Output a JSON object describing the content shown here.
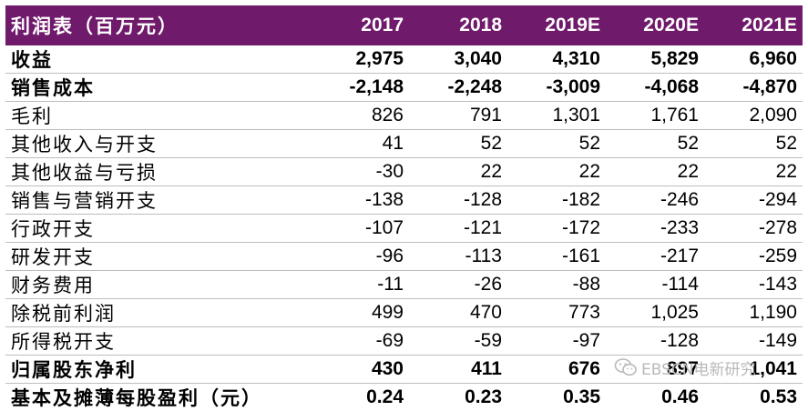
{
  "table": {
    "title": "利润表（百万元）",
    "years": [
      "2017",
      "2018",
      "2019E",
      "2020E",
      "2021E"
    ],
    "rows": [
      {
        "label": "收益",
        "bold": true,
        "values": [
          "2,975",
          "3,040",
          "4,310",
          "5,829",
          "6,960"
        ]
      },
      {
        "label": "销售成本",
        "bold": true,
        "values": [
          "-2,148",
          "-2,248",
          "-3,009",
          "-4,068",
          "-4,870"
        ]
      },
      {
        "label": "毛利",
        "bold": false,
        "values": [
          "826",
          "791",
          "1,301",
          "1,761",
          "2,090"
        ]
      },
      {
        "label": "其他收入与开支",
        "bold": false,
        "values": [
          "41",
          "52",
          "52",
          "52",
          "52"
        ]
      },
      {
        "label": "其他收益与亏损",
        "bold": false,
        "values": [
          "-30",
          "22",
          "22",
          "22",
          "22"
        ]
      },
      {
        "label": "销售与营销开支",
        "bold": false,
        "values": [
          "-138",
          "-128",
          "-182",
          "-246",
          "-294"
        ]
      },
      {
        "label": "行政开支",
        "bold": false,
        "values": [
          "-107",
          "-121",
          "-172",
          "-233",
          "-278"
        ]
      },
      {
        "label": "研发开支",
        "bold": false,
        "values": [
          "-96",
          "-113",
          "-161",
          "-217",
          "-259"
        ]
      },
      {
        "label": "财务费用",
        "bold": false,
        "values": [
          "-11",
          "-26",
          "-88",
          "-114",
          "-143"
        ]
      },
      {
        "label": "除税前利润",
        "bold": false,
        "values": [
          "499",
          "470",
          "773",
          "1,025",
          "1,190"
        ]
      },
      {
        "label": "所得税开支",
        "bold": false,
        "values": [
          "-69",
          "-59",
          "-97",
          "-128",
          "-149"
        ]
      },
      {
        "label": "归属股东净利",
        "bold": true,
        "values": [
          "430",
          "411",
          "676",
          "897",
          "1,041"
        ]
      },
      {
        "label": "基本及摊薄每股盈利（元）",
        "bold": true,
        "values": [
          "0.24",
          "0.23",
          "0.35",
          "0.46",
          "0.53"
        ]
      }
    ]
  },
  "watermark": {
    "icon": "wechat-icon",
    "text": "EBSCN电新研究"
  },
  "colors": {
    "header_bg": "#6f1a6b",
    "header_text": "#ffffff",
    "row_divider": "#bdbdbd"
  }
}
